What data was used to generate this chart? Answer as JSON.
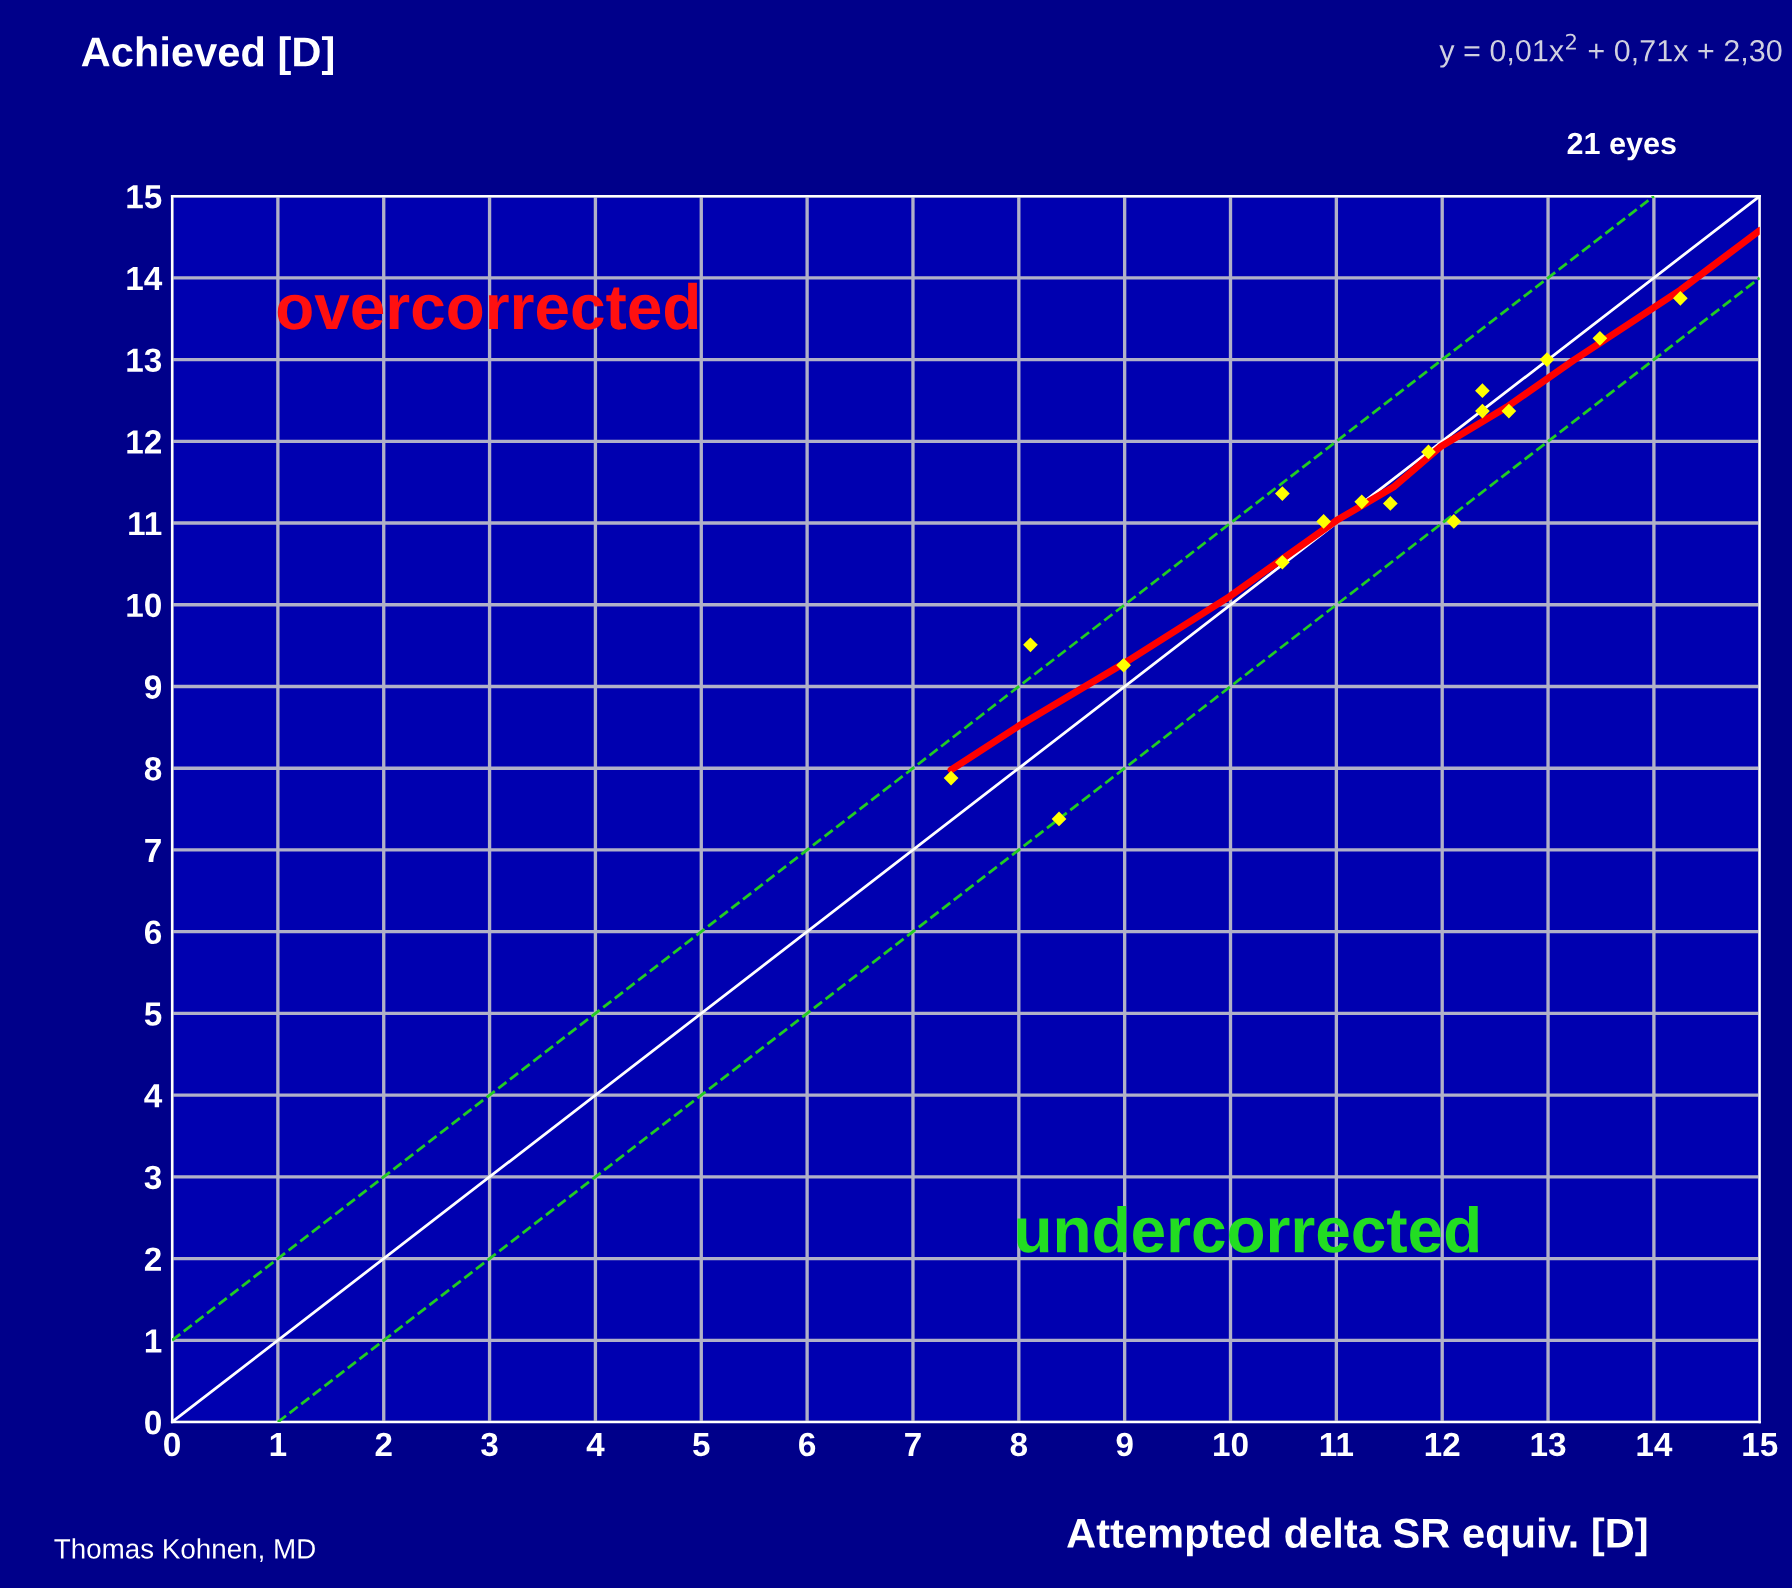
{
  "chart_data": {
    "type": "scatter",
    "ylabel": "Achieved [D]",
    "xlabel": "Attempted delta SR equiv. [D]",
    "xlim": [
      0,
      15
    ],
    "ylim": [
      0,
      15
    ],
    "xticks": [
      0,
      1,
      2,
      3,
      4,
      5,
      6,
      7,
      8,
      9,
      10,
      11,
      12,
      13,
      14,
      15
    ],
    "yticks": [
      0,
      1,
      2,
      3,
      4,
      5,
      6,
      7,
      8,
      9,
      10,
      11,
      12,
      13,
      14,
      15
    ],
    "grid": true,
    "legend": false,
    "series": [
      {
        "type": "line",
        "color": "#ffffff",
        "line_style": "solid",
        "marker": "none",
        "x": [
          0,
          15
        ],
        "values": [
          0,
          15
        ]
      },
      {
        "type": "line",
        "color": "#22cc22",
        "line_style": "dashed",
        "marker": "none",
        "x": [
          0,
          14
        ],
        "values": [
          1,
          15
        ]
      },
      {
        "type": "line",
        "color": "#22cc22",
        "line_style": "dashed",
        "marker": "none",
        "x": [
          1,
          15
        ],
        "values": [
          0,
          14
        ]
      },
      {
        "type": "line",
        "color": "#ff0000",
        "line_style": "solid",
        "marker": "none",
        "x": [
          7.36,
          7.99,
          8.99,
          9.99,
          11.0,
          11.54,
          11.98,
          12.61,
          13.24,
          14.25,
          15
        ],
        "values": [
          7.98,
          8.51,
          9.28,
          10.1,
          11.03,
          11.44,
          11.93,
          12.42,
          12.99,
          13.85,
          14.58
        ]
      },
      {
        "color": "#ffff00",
        "marker": "diamond",
        "x": [
          7.36,
          8.11,
          8.38,
          8.99,
          10.49,
          10.49,
          10.88,
          11.24,
          11.51,
          11.87,
          12.11,
          12.38,
          12.38,
          12.63,
          12.99,
          13.49,
          14.25
        ],
        "values": [
          7.88,
          9.51,
          7.38,
          9.26,
          11.36,
          10.52,
          11.02,
          11.26,
          11.24,
          11.87,
          11.02,
          12.62,
          12.37,
          12.37,
          13.0,
          13.26,
          13.75
        ]
      }
    ],
    "annotations": [
      "y = 0,01x$^{2}$ + 0,71x + 2,30",
      "21 eyes",
      "overcorrected",
      "undercorrected",
      "Thomas Kohnen, MD"
    ]
  }
}
